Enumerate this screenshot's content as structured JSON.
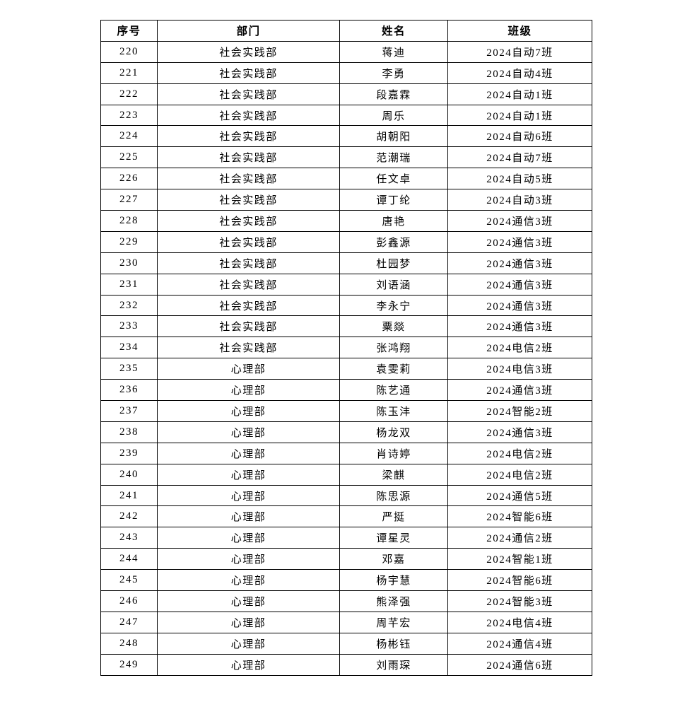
{
  "table": {
    "columns": [
      {
        "key": "index",
        "label": "序号"
      },
      {
        "key": "department",
        "label": "部门"
      },
      {
        "key": "name",
        "label": "姓名"
      },
      {
        "key": "class",
        "label": "班级"
      }
    ],
    "rows": [
      {
        "index": "220",
        "department": "社会实践部",
        "name": "蒋迪",
        "class": "2024自动7班"
      },
      {
        "index": "221",
        "department": "社会实践部",
        "name": "李勇",
        "class": "2024自动4班"
      },
      {
        "index": "222",
        "department": "社会实践部",
        "name": "段嘉霖",
        "class": "2024自动1班"
      },
      {
        "index": "223",
        "department": "社会实践部",
        "name": "周乐",
        "class": "2024自动1班"
      },
      {
        "index": "224",
        "department": "社会实践部",
        "name": "胡朝阳",
        "class": "2024自动6班"
      },
      {
        "index": "225",
        "department": "社会实践部",
        "name": "范潮瑞",
        "class": "2024自动7班"
      },
      {
        "index": "226",
        "department": "社会实践部",
        "name": "任文卓",
        "class": "2024自动5班"
      },
      {
        "index": "227",
        "department": "社会实践部",
        "name": "谭丁纶",
        "class": "2024自动3班"
      },
      {
        "index": "228",
        "department": "社会实践部",
        "name": "唐艳",
        "class": "2024通信3班"
      },
      {
        "index": "229",
        "department": "社会实践部",
        "name": "彭鑫源",
        "class": "2024通信3班"
      },
      {
        "index": "230",
        "department": "社会实践部",
        "name": "杜园梦",
        "class": "2024通信3班"
      },
      {
        "index": "231",
        "department": "社会实践部",
        "name": "刘语涵",
        "class": "2024通信3班"
      },
      {
        "index": "232",
        "department": "社会实践部",
        "name": "李永宁",
        "class": "2024通信3班"
      },
      {
        "index": "233",
        "department": "社会实践部",
        "name": "粟燚",
        "class": "2024通信3班"
      },
      {
        "index": "234",
        "department": "社会实践部",
        "name": "张鸿翔",
        "class": "2024电信2班"
      },
      {
        "index": "235",
        "department": "心理部",
        "name": "袁雯莉",
        "class": "2024电信3班"
      },
      {
        "index": "236",
        "department": "心理部",
        "name": "陈艺通",
        "class": "2024通信3班"
      },
      {
        "index": "237",
        "department": "心理部",
        "name": "陈玉沣",
        "class": "2024智能2班"
      },
      {
        "index": "238",
        "department": "心理部",
        "name": "杨龙双",
        "class": "2024通信3班"
      },
      {
        "index": "239",
        "department": "心理部",
        "name": "肖诗婷",
        "class": "2024电信2班"
      },
      {
        "index": "240",
        "department": "心理部",
        "name": "梁麒",
        "class": "2024电信2班"
      },
      {
        "index": "241",
        "department": "心理部",
        "name": "陈思源",
        "class": "2024通信5班"
      },
      {
        "index": "242",
        "department": "心理部",
        "name": "严挺",
        "class": "2024智能6班"
      },
      {
        "index": "243",
        "department": "心理部",
        "name": "谭星灵",
        "class": "2024通信2班"
      },
      {
        "index": "244",
        "department": "心理部",
        "name": "邓嘉",
        "class": "2024智能1班"
      },
      {
        "index": "245",
        "department": "心理部",
        "name": "杨宇慧",
        "class": "2024智能6班"
      },
      {
        "index": "246",
        "department": "心理部",
        "name": "熊泽强",
        "class": "2024智能3班"
      },
      {
        "index": "247",
        "department": "心理部",
        "name": "周芊宏",
        "class": "2024电信4班"
      },
      {
        "index": "248",
        "department": "心理部",
        "name": "杨彬钰",
        "class": "2024通信4班"
      },
      {
        "index": "249",
        "department": "心理部",
        "name": "刘雨琛",
        "class": "2024通信6班"
      }
    ]
  }
}
